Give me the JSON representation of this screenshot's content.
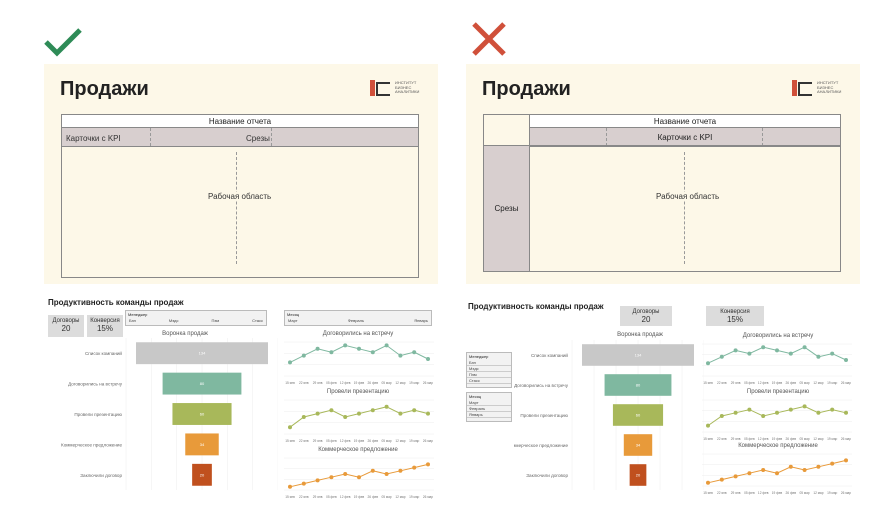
{
  "good": {
    "title": "Продажи",
    "report_name": "Название отчета",
    "kpi_cards": "Карточки с KPI",
    "slices": "Срезы",
    "work_area": "Рабочая область"
  },
  "bad": {
    "title": "Продажи",
    "report_name": "Название отчета",
    "kpi_cards": "Карточки с KPI",
    "slices": "Срезы",
    "work_area": "Рабочая область"
  },
  "logo": {
    "text": "ИНСТИТУТ БИЗНЕС АНАЛИТИКИ"
  },
  "colors": {
    "check": "#2e8b57",
    "cross": "#d0503a",
    "panel": "#fdf8e8",
    "band": "#d8cfcf"
  },
  "icons": {
    "good": "check-icon",
    "bad": "cross-icon"
  },
  "dash_left": {
    "title": "Продуктивность команды продаж",
    "kpi1_label": "Договоры",
    "kpi1_value": "20",
    "kpi2_label": "Конверсия",
    "kpi2_value": "15%",
    "slicer_manager": "Менеджер",
    "managers": [
      "Бэн",
      "Мэдс",
      "Пэм",
      "Стасс"
    ],
    "slicer_month": "Месяц",
    "months": [
      "Март",
      "Февраль",
      "Январь"
    ],
    "funnel_title": "Воронка продаж",
    "chart1_title": "Договорились на встречу",
    "chart2_title": "Провели презентацию",
    "chart3_title": "Коммерческое предложение"
  },
  "dash_right": {
    "title": "Продуктивность команды продаж",
    "kpi1_label": "Договоры",
    "kpi1_value": "20",
    "kpi2_label": "Конверсия",
    "kpi2_value": "15%",
    "slicer_manager": "Менеджер",
    "managers": [
      "Бэн",
      "Мэдс",
      "Пэм",
      "Стасс"
    ],
    "slicer_month": "Месяц",
    "months": [
      "Март",
      "Февраль",
      "Январь"
    ],
    "funnel_title": "Воронка продаж",
    "chart1_title": "Договорились на встречу",
    "chart2_title": "Провели презентацию",
    "chart3_title": "Коммерческое предложение"
  },
  "chart_data": [
    {
      "type": "bar",
      "title": "Воронка продаж",
      "categories": [
        "Список компаний",
        "Договорились на встречу",
        "Провели презентацию",
        "Коммерческое предложение",
        "Заключили договор"
      ],
      "values": [
        134,
        80,
        60,
        34,
        20
      ],
      "colors": [
        "#c8c8c8",
        "#7fb8a0",
        "#a8b85a",
        "#e89a3a",
        "#c0501e"
      ]
    },
    {
      "type": "line",
      "title": "Договорились на встречу",
      "x": [
        "15 янв",
        "22 янв",
        "29 янв",
        "05 фев",
        "12 фев",
        "19 фев",
        "26 фев",
        "05 мар",
        "12 мар",
        "19 мар",
        "26 мар"
      ],
      "values": [
        4,
        6,
        8,
        7,
        9,
        8,
        7,
        9,
        6,
        7,
        5
      ],
      "color": "#7fb8a0"
    },
    {
      "type": "line",
      "title": "Провели презентацию",
      "x": [
        "15 янв",
        "22 янв",
        "29 янв",
        "05 фев",
        "12 фев",
        "19 фев",
        "26 фев",
        "05 мар",
        "12 мар",
        "19 мар",
        "26 мар"
      ],
      "values": [
        2,
        5,
        6,
        7,
        5,
        6,
        7,
        8,
        6,
        7,
        6
      ],
      "color": "#a8b85a"
    },
    {
      "type": "line",
      "title": "Коммерческое предложение",
      "x": [
        "15 янв",
        "22 янв",
        "29 янв",
        "05 фев",
        "12 фев",
        "19 фев",
        "26 фев",
        "05 мар",
        "12 мар",
        "19 мар",
        "26 мар"
      ],
      "values": [
        1,
        2,
        3,
        4,
        5,
        4,
        6,
        5,
        6,
        7,
        8
      ],
      "color": "#e89a3a"
    }
  ]
}
